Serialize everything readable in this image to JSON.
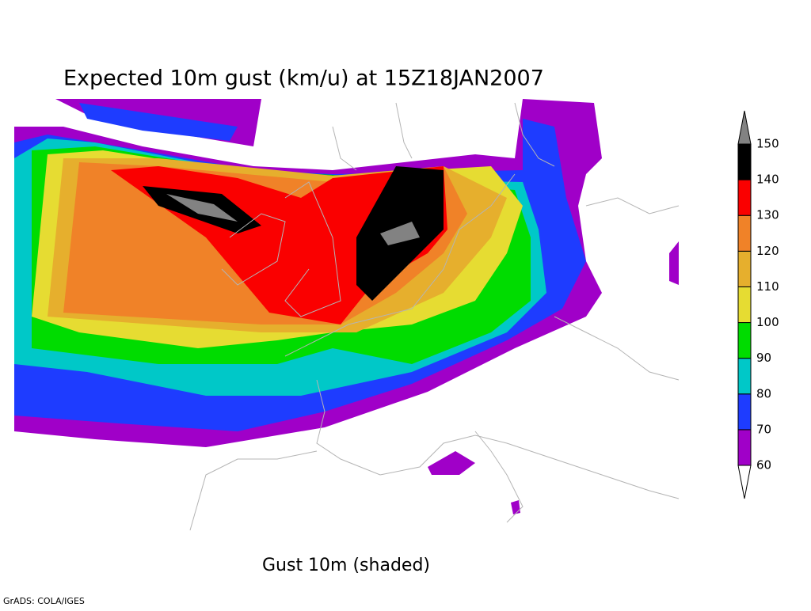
{
  "title": "Expected 10m gust (km/u) at 15Z18JAN2007",
  "caption": "Gust 10m (shaded)",
  "credit": "GrADS: COLA/IGES",
  "colorbar": {
    "levels": [
      60,
      70,
      80,
      90,
      100,
      110,
      120,
      130,
      140,
      150
    ],
    "colors": [
      "#ffffff",
      "#a000c8",
      "#1e3cff",
      "#00c8c8",
      "#00dc00",
      "#e6dc32",
      "#e6af2d",
      "#f08228",
      "#fa0000",
      "#000000",
      "#828282"
    ]
  }
}
